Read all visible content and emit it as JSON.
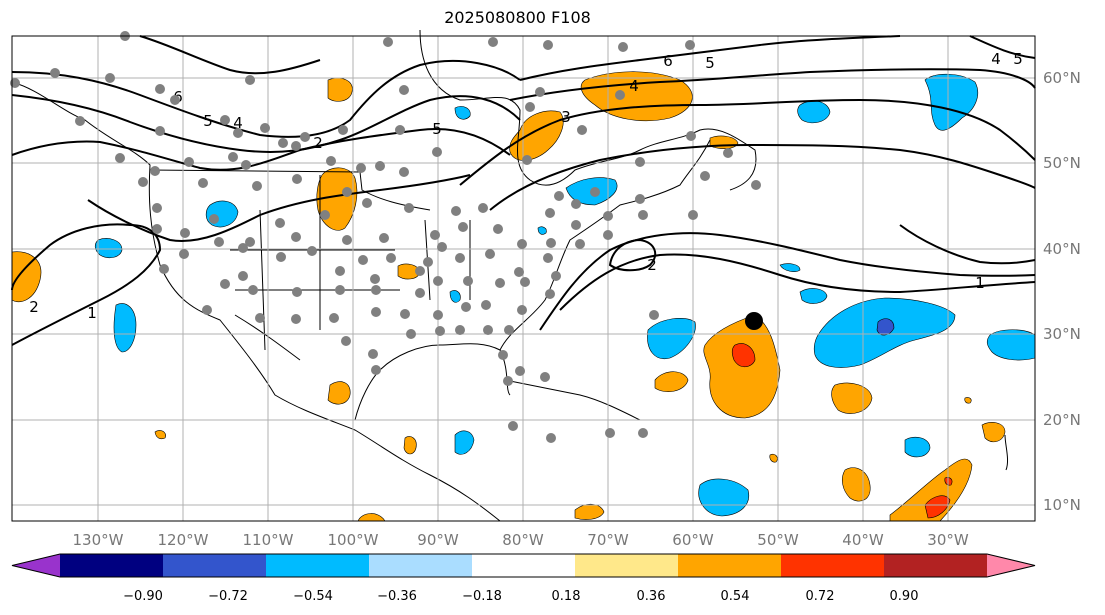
{
  "title": "2025080800 F108",
  "map": {
    "lon_labels": [
      "130°W",
      "120°W",
      "110°W",
      "100°W",
      "90°W",
      "80°W",
      "70°W",
      "60°W",
      "50°W",
      "40°W",
      "30°W"
    ],
    "lat_labels": [
      "60°N",
      "50°N",
      "40°N",
      "30°N",
      "20°N",
      "10°N"
    ],
    "contour_labels": [
      "6",
      "5",
      "4",
      "2",
      "5",
      "3",
      "4",
      "6",
      "5",
      "2",
      "1",
      "2",
      "1",
      "4",
      "5"
    ]
  },
  "colorbar": {
    "ticks": [
      "−0.90",
      "−0.72",
      "−0.54",
      "−0.36",
      "−0.18",
      "0.18",
      "0.36",
      "0.54",
      "0.72",
      "0.90"
    ],
    "colors": [
      "#9933cc",
      "#000080",
      "#3355cc",
      "#00bbff",
      "#aaddff",
      "#ffffff",
      "#ffe88a",
      "#ffa500",
      "#ff3300",
      "#b22222",
      "#ff88aa"
    ]
  },
  "colors": {
    "positive_anomaly": "#ffa500",
    "strong_positive": "#ff3300",
    "negative_anomaly": "#00bbff",
    "strong_negative": "#3355cc",
    "station_marker": "#808080",
    "storm_marker": "#000000"
  }
}
